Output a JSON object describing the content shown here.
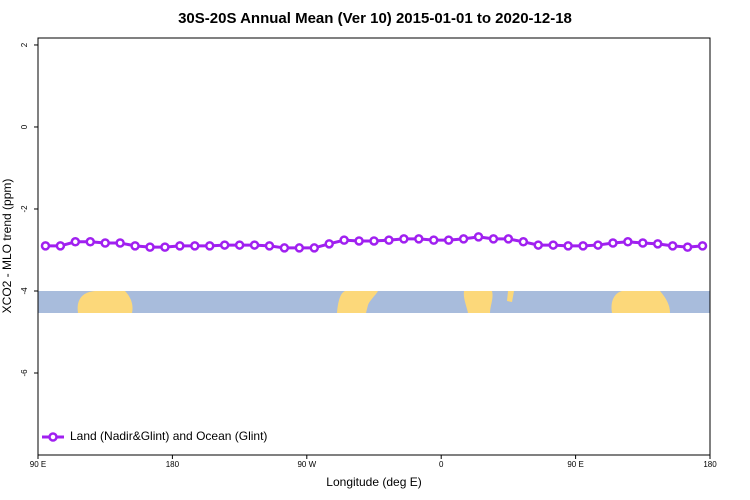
{
  "chart_data": {
    "type": "line",
    "title": "30S-20S Annual Mean (Ver 10)   2015-01-01 to 2020-12-18",
    "x_label": "Longitude (deg E)",
    "y_label": "XCO2 - MLO trend (ppm)",
    "x": [
      95,
      105,
      115,
      125,
      135,
      145,
      155,
      165,
      175,
      185,
      195,
      205,
      215,
      225,
      235,
      245,
      255,
      265,
      275,
      285,
      295,
      305,
      315,
      325,
      335,
      345,
      355,
      365,
      375,
      385,
      395,
      405,
      415,
      425,
      435,
      445,
      455,
      465,
      475,
      485,
      495,
      505,
      515,
      525,
      535
    ],
    "series": [
      {
        "name": "Land (Nadir&Glint) and Ocean (Glint)",
        "color": "#a020f0",
        "values": [
          -2.9,
          -2.9,
          -2.8,
          -2.8,
          -2.83,
          -2.83,
          -2.9,
          -2.93,
          -2.93,
          -2.9,
          -2.9,
          -2.9,
          -2.88,
          -2.88,
          -2.88,
          -2.9,
          -2.95,
          -2.95,
          -2.95,
          -2.85,
          -2.76,
          -2.78,
          -2.78,
          -2.76,
          -2.73,
          -2.73,
          -2.76,
          -2.76,
          -2.73,
          -2.68,
          -2.73,
          -2.73,
          -2.8,
          -2.88,
          -2.88,
          -2.9,
          -2.9,
          -2.88,
          -2.83,
          -2.8,
          -2.83,
          -2.85,
          -2.9,
          -2.93,
          -2.9
        ]
      }
    ],
    "xlim": [
      90,
      540
    ],
    "xticks": [
      {
        "value": 90,
        "label": "90 E"
      },
      {
        "value": 180,
        "label": "180"
      },
      {
        "value": 270,
        "label": "90 W"
      },
      {
        "value": 360,
        "label": "0"
      },
      {
        "value": 450,
        "label": "90 E"
      },
      {
        "value": 540,
        "label": "180"
      }
    ],
    "ylim": [
      -8,
      2.17
    ],
    "yticks": [
      2,
      0,
      -2,
      -4,
      -6
    ],
    "legend": "bottom-left"
  }
}
